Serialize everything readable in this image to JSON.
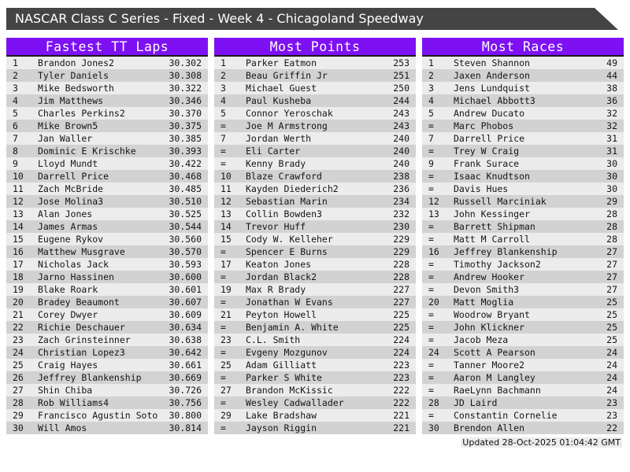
{
  "page": {
    "title": "NASCAR Class C Series - Fixed - Week 4 - Chicagoland Speedway",
    "updated": "Updated 28-Oct-2025 01:04:42 GMT"
  },
  "colors": {
    "titlebar_bg": "#444444",
    "header_bg": "#7D11F3",
    "header_border": "#1C1C1C",
    "row_odd": "#ECECEC",
    "row_even": "#D2D2D2"
  },
  "tables": [
    {
      "title": "Fastest TT Laps",
      "columns": [
        "rank",
        "driver",
        "lap_time"
      ],
      "rows": [
        [
          "1",
          "Brandon Jones2",
          "30.302"
        ],
        [
          "2",
          "Tyler Daniels",
          "30.308"
        ],
        [
          "3",
          "Mike Bedsworth",
          "30.322"
        ],
        [
          "4",
          "Jim Matthews",
          "30.346"
        ],
        [
          "5",
          "Charles Perkins2",
          "30.370"
        ],
        [
          "6",
          "Mike Brown5",
          "30.375"
        ],
        [
          "7",
          "Jan Waller",
          "30.385"
        ],
        [
          "8",
          "Dominic E Krischke",
          "30.393"
        ],
        [
          "9",
          "Lloyd Mundt",
          "30.422"
        ],
        [
          "10",
          "Darrell Price",
          "30.468"
        ],
        [
          "11",
          "Zach McBride",
          "30.485"
        ],
        [
          "12",
          "Jose Molina3",
          "30.510"
        ],
        [
          "13",
          "Alan Jones",
          "30.525"
        ],
        [
          "14",
          "James Armas",
          "30.544"
        ],
        [
          "15",
          "Eugene Rykov",
          "30.560"
        ],
        [
          "16",
          "Matthew Musgrave",
          "30.570"
        ],
        [
          "17",
          "Nicholas Jack",
          "30.593"
        ],
        [
          "18",
          "Jarno Hassinen",
          "30.600"
        ],
        [
          "19",
          "Blake Roark",
          "30.601"
        ],
        [
          "20",
          "Bradey Beaumont",
          "30.607"
        ],
        [
          "21",
          "Corey Dwyer",
          "30.609"
        ],
        [
          "22",
          "Richie Deschauer",
          "30.634"
        ],
        [
          "23",
          "Zach Grinsteinner",
          "30.638"
        ],
        [
          "24",
          "Christian Lopez3",
          "30.642"
        ],
        [
          "25",
          "Craig Hayes",
          "30.661"
        ],
        [
          "26",
          "Jeffrey Blankenship",
          "30.669"
        ],
        [
          "27",
          "Shin Chiba",
          "30.726"
        ],
        [
          "28",
          "Rob Williams4",
          "30.756"
        ],
        [
          "29",
          "Francisco Agustin Soto",
          "30.800"
        ],
        [
          "30",
          "Will Amos",
          "30.814"
        ]
      ]
    },
    {
      "title": "Most Points",
      "columns": [
        "rank",
        "driver",
        "points"
      ],
      "rows": [
        [
          "1",
          "Parker Eatmon",
          "253"
        ],
        [
          "2",
          "Beau Griffin Jr",
          "251"
        ],
        [
          "3",
          "Michael Guest",
          "250"
        ],
        [
          "4",
          "Paul Kusheba",
          "244"
        ],
        [
          "5",
          "Connor Yeroschak",
          "243"
        ],
        [
          "=",
          "Joe M Armstrong",
          "243"
        ],
        [
          "7",
          "Jordan Werth",
          "240"
        ],
        [
          "=",
          "Eli Carter",
          "240"
        ],
        [
          "=",
          "Kenny Brady",
          "240"
        ],
        [
          "10",
          "Blaze Crawford",
          "238"
        ],
        [
          "11",
          "Kayden Diederich2",
          "236"
        ],
        [
          "12",
          "Sebastian Marin",
          "234"
        ],
        [
          "13",
          "Collin Bowden3",
          "232"
        ],
        [
          "14",
          "Trevor Huff",
          "230"
        ],
        [
          "15",
          "Cody W. Kelleher",
          "229"
        ],
        [
          "=",
          "Spencer E Burns",
          "229"
        ],
        [
          "17",
          "Keaton Jones",
          "228"
        ],
        [
          "=",
          "Jordan Black2",
          "228"
        ],
        [
          "19",
          "Max R Brady",
          "227"
        ],
        [
          "=",
          "Jonathan W Evans",
          "227"
        ],
        [
          "21",
          "Peyton Howell",
          "225"
        ],
        [
          "=",
          "Benjamin A. White",
          "225"
        ],
        [
          "23",
          "C.L. Smith",
          "224"
        ],
        [
          "=",
          "Evgeny Mozgunov",
          "224"
        ],
        [
          "25",
          "Adam Gilliatt",
          "223"
        ],
        [
          "=",
          "Parker S White",
          "223"
        ],
        [
          "27",
          "Brandon McKissic",
          "222"
        ],
        [
          "=",
          "Wesley Cadwallader",
          "222"
        ],
        [
          "29",
          "Lake Bradshaw",
          "221"
        ],
        [
          "=",
          "Jayson Riggin",
          "221"
        ]
      ]
    },
    {
      "title": "Most Races",
      "columns": [
        "rank",
        "driver",
        "races"
      ],
      "rows": [
        [
          "1",
          "Steven Shannon",
          "49"
        ],
        [
          "2",
          "Jaxen Anderson",
          "44"
        ],
        [
          "3",
          "Jens Lundquist",
          "38"
        ],
        [
          "4",
          "Michael Abbott3",
          "36"
        ],
        [
          "5",
          "Andrew Ducato",
          "32"
        ],
        [
          "=",
          "Marc Phobos",
          "32"
        ],
        [
          "7",
          "Darrell Price",
          "31"
        ],
        [
          "=",
          "Trey W Craig",
          "31"
        ],
        [
          "9",
          "Frank Surace",
          "30"
        ],
        [
          "=",
          "Isaac Knudtson",
          "30"
        ],
        [
          "=",
          "Davis Hues",
          "30"
        ],
        [
          "12",
          "Russell Marciniak",
          "29"
        ],
        [
          "13",
          "John Kessinger",
          "28"
        ],
        [
          "=",
          "Barrett Shipman",
          "28"
        ],
        [
          "=",
          "Matt M Carroll",
          "28"
        ],
        [
          "16",
          "Jeffrey Blankenship",
          "27"
        ],
        [
          "=",
          "Timothy Jackson2",
          "27"
        ],
        [
          "=",
          "Andrew Hooker",
          "27"
        ],
        [
          "=",
          "Devon Smith3",
          "27"
        ],
        [
          "20",
          "Matt Moglia",
          "25"
        ],
        [
          "=",
          "Woodrow Bryant",
          "25"
        ],
        [
          "=",
          "John Klickner",
          "25"
        ],
        [
          "=",
          "Jacob Meza",
          "25"
        ],
        [
          "24",
          "Scott A Pearson",
          "24"
        ],
        [
          "=",
          "Tanner Moore2",
          "24"
        ],
        [
          "=",
          "Aaron M Langley",
          "24"
        ],
        [
          "=",
          "RaeLynn Bachmann",
          "24"
        ],
        [
          "28",
          "JD Laird",
          "23"
        ],
        [
          "=",
          "Constantin Cornelie",
          "23"
        ],
        [
          "30",
          "Brendon Allen",
          "22"
        ]
      ]
    }
  ]
}
